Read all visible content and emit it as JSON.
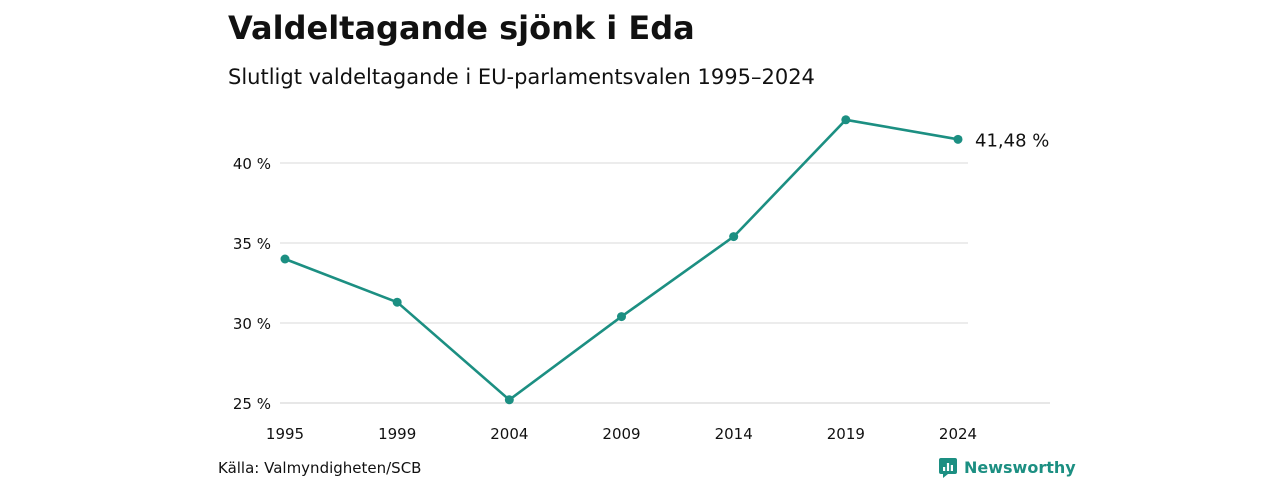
{
  "header": {
    "title": "Valdeltagande sjönk i Eda",
    "subtitle": "Slutligt valdeltagande i EU-parlamentsvalen 1995–2024"
  },
  "footer": {
    "source": "Källa: Valmyndigheten/SCB",
    "brand": "Newsworthy",
    "brand_icon": "bar-chart-speech-bubble-icon"
  },
  "colors": {
    "line": "#1c8f82",
    "grid": "#d9d9d9",
    "text": "#111111"
  },
  "chart_data": {
    "type": "line",
    "categories": [
      "1995",
      "1999",
      "2004",
      "2009",
      "2014",
      "2019",
      "2024"
    ],
    "series": [
      {
        "values": [
          34.0,
          31.3,
          25.2,
          30.4,
          35.4,
          42.7,
          41.48
        ]
      }
    ],
    "yticks": [
      25,
      30,
      35,
      40
    ],
    "ytick_labels": [
      "25 %",
      "30 %",
      "35 %",
      "40 %"
    ],
    "ylim": [
      25,
      40
    ],
    "end_label": "41,48 %",
    "xlabel": "",
    "ylabel": "",
    "grid": true,
    "legend": "none"
  }
}
